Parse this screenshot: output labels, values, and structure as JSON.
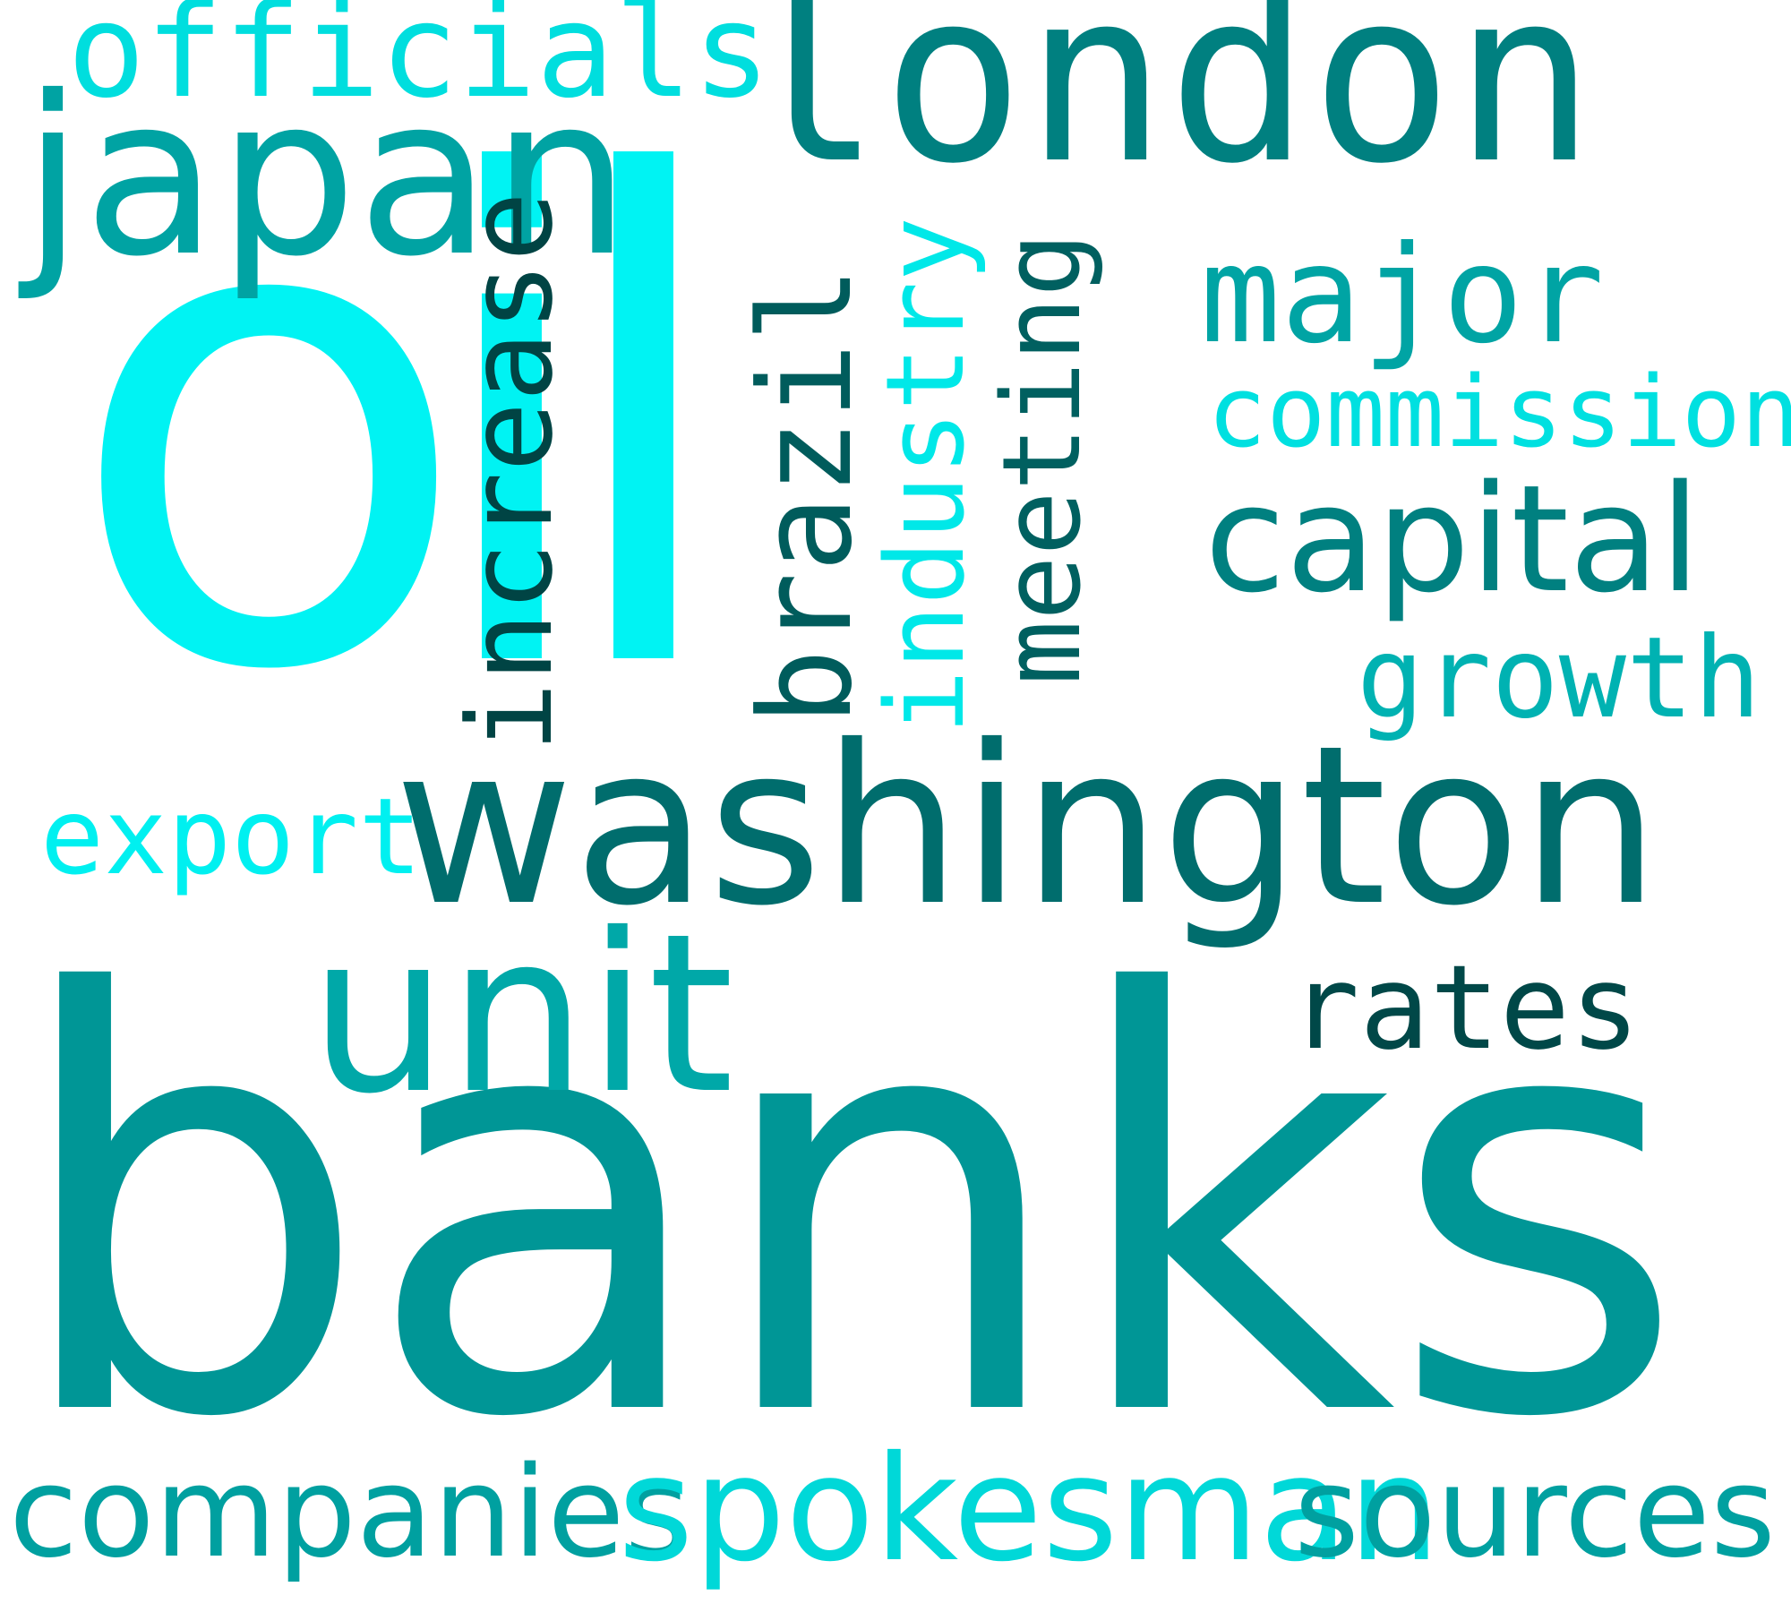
{
  "words": {
    "oil": "oil",
    "banks": "banks",
    "washington": "washington",
    "london": "london",
    "japan": "japan",
    "officials": "officials",
    "unit": "unit",
    "major": "major",
    "commission": "commission",
    "capital": "capital",
    "growth": "growth",
    "rates": "rates",
    "export": "export",
    "companies": "companies",
    "spokesman": "spokesman",
    "sources": "sources",
    "increase": "increase",
    "brazil": "brazil",
    "industry": "industry",
    "meeting": "meeting"
  },
  "colors": {
    "background": "#ffffff",
    "oil": "#00f3f3",
    "banks": "#009696",
    "washington": "#006d6d",
    "london": "#008080"
  }
}
